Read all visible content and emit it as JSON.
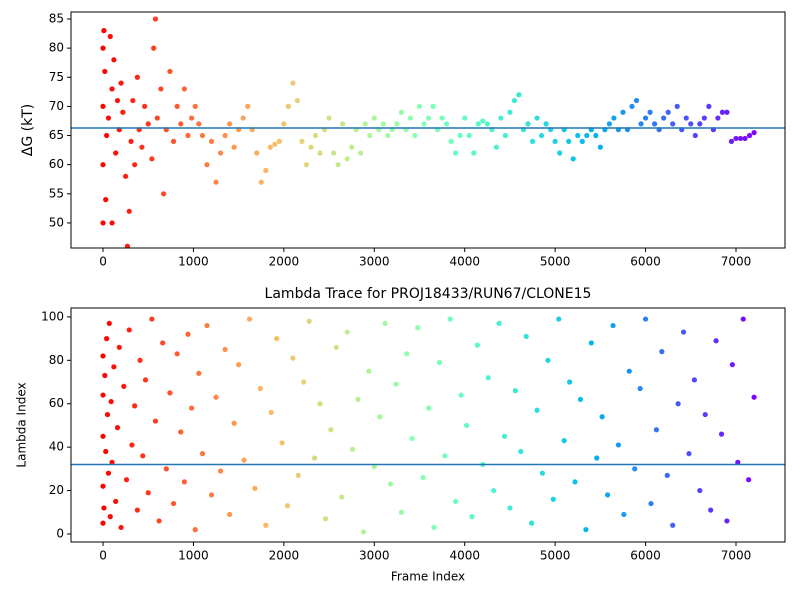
{
  "chart_data": [
    {
      "type": "scatter",
      "ylabel": "ΔG (kT)",
      "colormap": "rainbow",
      "colormap_reversed": true,
      "xlim": [
        -354,
        7542
      ],
      "xticks": [
        0,
        1000,
        2000,
        3000,
        4000,
        5000,
        6000,
        7000
      ],
      "ylim": [
        45.7,
        86.2
      ],
      "yticks": [
        50,
        55,
        60,
        65,
        70,
        75,
        80,
        85
      ],
      "hline": {
        "value": 66.3,
        "color": "#1f77b4"
      },
      "x": [
        0,
        0,
        0,
        0,
        10,
        20,
        30,
        40,
        60,
        80,
        100,
        100,
        120,
        140,
        160,
        180,
        200,
        220,
        250,
        270,
        290,
        310,
        330,
        350,
        380,
        400,
        430,
        460,
        500,
        540,
        560,
        580,
        600,
        640,
        670,
        700,
        740,
        780,
        820,
        860,
        900,
        940,
        980,
        1020,
        1060,
        1100,
        1150,
        1200,
        1250,
        1300,
        1350,
        1400,
        1450,
        1500,
        1550,
        1600,
        1650,
        1700,
        1750,
        1800,
        1850,
        1900,
        1950,
        2000,
        2050,
        2100,
        2150,
        2200,
        2250,
        2300,
        2350,
        2400,
        2450,
        2500,
        2550,
        2600,
        2650,
        2700,
        2750,
        2800,
        2850,
        2900,
        2950,
        3000,
        3050,
        3100,
        3150,
        3200,
        3250,
        3300,
        3350,
        3400,
        3450,
        3500,
        3550,
        3600,
        3650,
        3700,
        3750,
        3800,
        3850,
        3900,
        3950,
        4000,
        4050,
        4100,
        4150,
        4200,
        4250,
        4300,
        4350,
        4400,
        4450,
        4500,
        4550,
        4600,
        4650,
        4700,
        4750,
        4800,
        4850,
        4900,
        4950,
        5000,
        5050,
        5100,
        5150,
        5200,
        5250,
        5300,
        5350,
        5400,
        5450,
        5500,
        5550,
        5600,
        5650,
        5700,
        5750,
        5800,
        5850,
        5900,
        5950,
        6000,
        6050,
        6100,
        6150,
        6200,
        6250,
        6300,
        6350,
        6400,
        6450,
        6500,
        6550,
        6600,
        6650,
        6700,
        6750,
        6800,
        6850,
        6900,
        6950,
        7000,
        7050,
        7100,
        7150,
        7200
      ],
      "values": [
        80,
        70,
        60,
        50,
        83,
        76,
        54,
        65,
        68,
        82,
        73,
        50,
        78,
        62,
        71,
        66,
        74,
        69,
        58,
        46,
        52,
        64,
        71,
        60,
        75,
        66,
        63,
        70,
        67,
        61,
        80,
        85,
        68,
        73,
        55,
        66,
        76,
        64,
        70,
        67,
        73,
        65,
        68,
        70,
        67,
        65,
        60,
        64,
        57,
        62,
        65,
        67,
        63,
        66,
        68,
        70,
        66,
        62,
        57,
        59,
        63,
        63.5,
        64,
        67,
        70,
        74,
        71,
        64,
        60,
        63,
        65,
        62,
        66,
        68,
        62,
        60,
        67,
        61,
        63,
        66,
        62,
        67,
        65,
        68,
        66,
        67,
        65,
        66,
        67,
        69,
        66,
        68,
        65,
        70,
        67,
        68,
        70,
        66,
        68,
        67,
        64,
        62,
        65,
        68,
        65,
        62,
        67,
        67.5,
        67,
        66,
        63,
        68,
        65,
        69,
        71,
        72,
        66,
        67,
        64,
        68,
        65,
        67,
        66,
        64,
        62,
        66,
        64,
        61,
        65,
        64,
        65,
        66,
        65,
        63,
        66,
        67,
        68,
        66,
        69,
        66,
        70,
        71,
        67,
        68,
        69,
        67,
        66,
        68,
        69,
        67,
        70,
        66,
        68,
        67,
        65,
        67,
        68,
        70,
        66,
        68,
        69,
        69,
        64,
        64.5,
        64.5,
        64.5,
        65,
        65.5
      ]
    },
    {
      "type": "scatter",
      "title": "Lambda Trace for PROJ18433/RUN67/CLONE15",
      "xlabel": "Frame Index",
      "ylabel": "Lambda Index",
      "colormap": "rainbow",
      "colormap_reversed": true,
      "xlim": [
        -354,
        7542
      ],
      "xticks": [
        0,
        1000,
        2000,
        3000,
        4000,
        5000,
        6000,
        7000
      ],
      "ylim": [
        -3.7,
        104.1
      ],
      "yticks": [
        0,
        20,
        40,
        60,
        80,
        100
      ],
      "hline": {
        "value": 32,
        "color": "#1f77b4"
      },
      "x": [
        0,
        0,
        0,
        0,
        0,
        10,
        20,
        30,
        40,
        50,
        60,
        70,
        80,
        90,
        100,
        120,
        140,
        160,
        180,
        200,
        230,
        260,
        290,
        320,
        350,
        380,
        410,
        440,
        470,
        500,
        540,
        580,
        620,
        660,
        700,
        740,
        780,
        820,
        860,
        900,
        940,
        980,
        1020,
        1060,
        1100,
        1150,
        1200,
        1250,
        1300,
        1350,
        1400,
        1450,
        1500,
        1560,
        1620,
        1680,
        1740,
        1800,
        1860,
        1920,
        1980,
        2040,
        2100,
        2160,
        2220,
        2280,
        2340,
        2400,
        2460,
        2520,
        2580,
        2640,
        2700,
        2760,
        2820,
        2880,
        2940,
        3000,
        3060,
        3120,
        3180,
        3240,
        3300,
        3360,
        3420,
        3480,
        3540,
        3600,
        3660,
        3720,
        3780,
        3840,
        3900,
        3960,
        4020,
        4080,
        4140,
        4200,
        4260,
        4320,
        4380,
        4440,
        4500,
        4560,
        4620,
        4680,
        4740,
        4800,
        4860,
        4920,
        4980,
        5040,
        5100,
        5160,
        5220,
        5280,
        5340,
        5400,
        5460,
        5520,
        5580,
        5640,
        5700,
        5760,
        5820,
        5880,
        5940,
        6000,
        6060,
        6120,
        6180,
        6240,
        6300,
        6360,
        6420,
        6480,
        6540,
        6600,
        6660,
        6720,
        6780,
        6840,
        6900,
        6960,
        7020,
        7080,
        7140,
        7200
      ],
      "values": [
        82,
        45,
        22,
        5,
        64,
        12,
        73,
        38,
        90,
        55,
        28,
        97,
        8,
        61,
        33,
        77,
        15,
        49,
        86,
        3,
        68,
        25,
        94,
        41,
        59,
        11,
        80,
        36,
        71,
        19,
        99,
        52,
        6,
        88,
        30,
        65,
        14,
        83,
        47,
        24,
        92,
        58,
        2,
        74,
        37,
        96,
        18,
        63,
        29,
        85,
        9,
        51,
        78,
        34,
        99,
        21,
        67,
        4,
        56,
        90,
        42,
        13,
        81,
        27,
        70,
        98,
        35,
        60,
        7,
        48,
        86,
        17,
        93,
        39,
        62,
        1,
        75,
        31,
        54,
        97,
        23,
        69,
        10,
        83,
        44,
        95,
        26,
        58,
        3,
        79,
        36,
        99,
        15,
        64,
        50,
        8,
        87,
        32,
        72,
        20,
        97,
        45,
        12,
        66,
        38,
        91,
        5,
        57,
        28,
        80,
        16,
        99,
        43,
        70,
        24,
        62,
        2,
        88,
        35,
        54,
        18,
        96,
        41,
        9,
        75,
        30,
        67,
        99,
        14,
        48,
        84,
        27,
        4,
        60,
        93,
        37,
        71,
        20,
        55,
        11,
        89,
        46,
        6,
        78,
        33,
        99,
        25,
        63
      ]
    }
  ]
}
